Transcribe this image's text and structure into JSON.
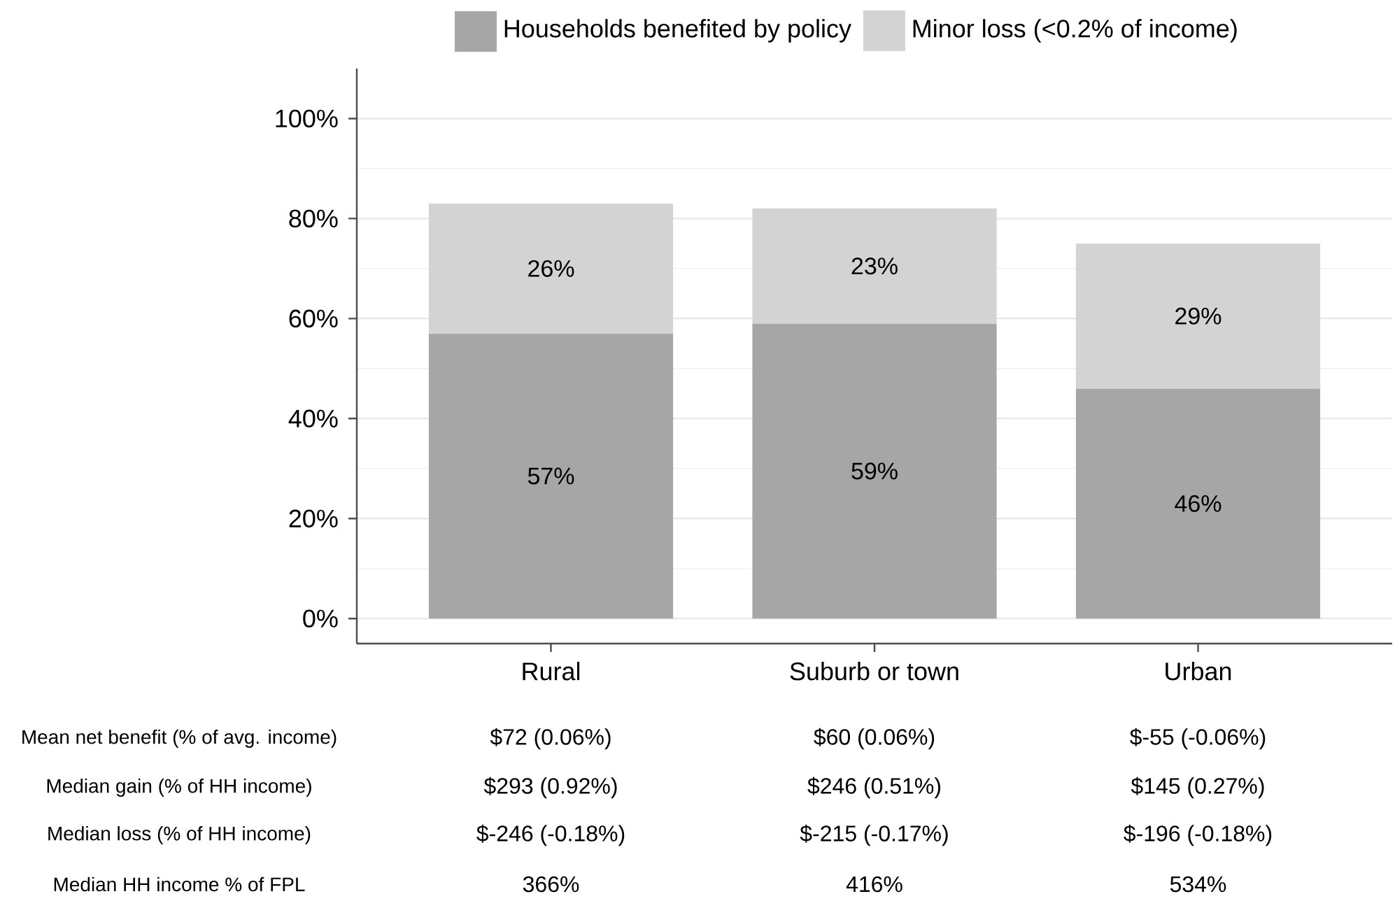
{
  "chart_data": {
    "type": "bar",
    "stacked": true,
    "categories": [
      "Rural",
      "Suburb or town",
      "Urban"
    ],
    "series": [
      {
        "name": "Households benefited by policy",
        "color": "#a6a6a6",
        "values": [
          57,
          59,
          46
        ],
        "value_labels": [
          "57%",
          "59%",
          "46%"
        ]
      },
      {
        "name": "Minor loss (<0.2% of income)",
        "color": "#d3d3d3",
        "values": [
          26,
          23,
          29
        ],
        "value_labels": [
          "26%",
          "23%",
          "29%"
        ]
      }
    ],
    "ylim": [
      -5,
      110
    ],
    "yticks": [
      {
        "value": 0,
        "label": "0%"
      },
      {
        "value": 20,
        "label": "20%"
      },
      {
        "value": 40,
        "label": "40%"
      },
      {
        "value": 60,
        "label": "60%"
      },
      {
        "value": 80,
        "label": "80%"
      },
      {
        "value": 100,
        "label": "100%"
      }
    ],
    "grid": "y",
    "legend": "top",
    "annotations": [
      "Mean net benefit (% of avg. income)",
      "$72 (0.06%)",
      "$60 (0.06%)",
      "$-55 (-0.06%)",
      "Median gain (% of HH income)",
      "$293 (0.92%)",
      "$246 (0.51%)",
      "$145 (0.27%)",
      "Median loss (% of HH income)",
      "$-246 (-0.18%)",
      "$-215 (-0.17%)",
      "$-196 (-0.18%)",
      "Median HH income % of FPL",
      "366%",
      "416%",
      "534%"
    ]
  }
}
